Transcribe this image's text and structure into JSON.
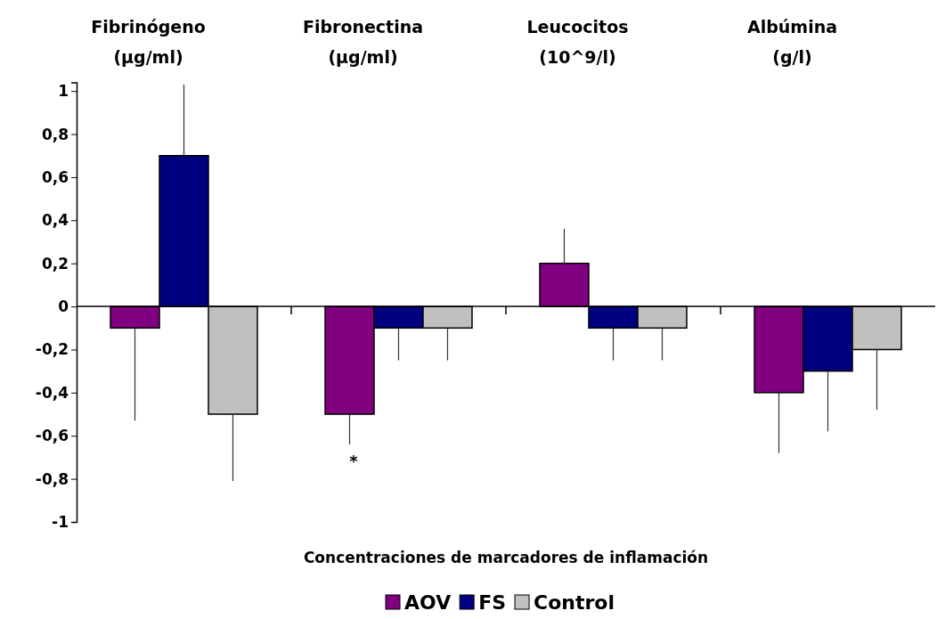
{
  "chart_data": {
    "type": "bar",
    "categories": [
      "Fibrinógeno (µg/ml)",
      "Fibronectina (µg/ml)",
      "Leucocitos (10^9/l)",
      "Albúmina (g/l)"
    ],
    "series": [
      {
        "name": "AOV",
        "color": "#800080",
        "values": [
          -0.1,
          -0.5,
          0.2,
          -0.4
        ],
        "errors": [
          [
            -0.53,
            -0.1
          ],
          [
            -0.64,
            -0.5
          ],
          [
            0.2,
            0.36
          ],
          [
            -0.68,
            -0.4
          ]
        ]
      },
      {
        "name": "FS",
        "color": "#000080",
        "values": [
          0.7,
          -0.1,
          -0.1,
          -0.3
        ],
        "errors": [
          [
            0.7,
            1.03
          ],
          [
            -0.25,
            -0.1
          ],
          [
            -0.25,
            -0.1
          ],
          [
            -0.58,
            -0.3
          ]
        ]
      },
      {
        "name": "Control",
        "color": "#c0c0c0",
        "values": [
          -0.5,
          -0.1,
          -0.1,
          -0.2
        ],
        "errors": [
          [
            -0.81,
            -0.5
          ],
          [
            -0.25,
            -0.1
          ],
          [
            -0.25,
            -0.1
          ],
          [
            -0.48,
            -0.2
          ]
        ]
      }
    ],
    "xlabel": "Concentraciones de marcadores de inflamación",
    "ylim": [
      -1,
      1.04
    ],
    "yticks": [
      1,
      {
        "value": 0.8,
        "label": "0,8"
      },
      {
        "value": 0.6,
        "label": "0,6"
      },
      {
        "value": 0.4,
        "label": "0,4"
      },
      {
        "value": 0.2,
        "label": "0,2"
      },
      0,
      {
        "value": -0.2,
        "label": "-0,2"
      },
      {
        "value": -0.4,
        "label": "-0,4"
      },
      {
        "value": -0.6,
        "label": "-0,6"
      },
      {
        "value": -0.8,
        "label": "-0,8"
      },
      -1
    ],
    "annotations": [
      "*"
    ],
    "legend": "bottom"
  }
}
